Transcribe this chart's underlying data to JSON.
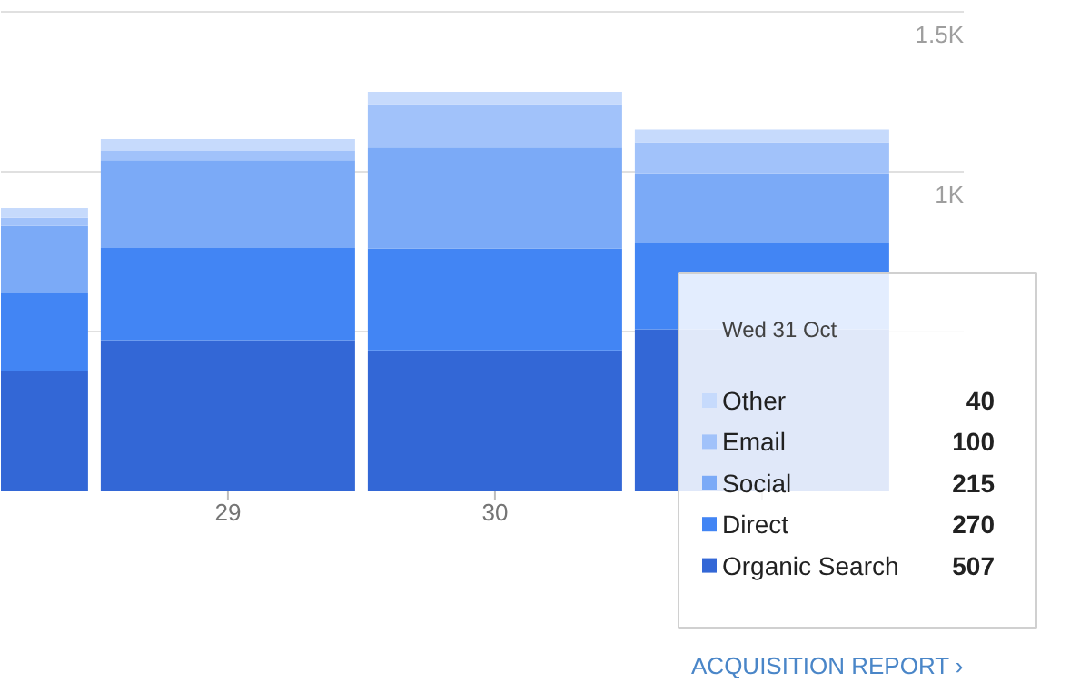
{
  "chart_data": {
    "type": "bar",
    "stacked": true,
    "categories": [
      null,
      "29",
      "30",
      null
    ],
    "series": [
      {
        "name": "Organic Search",
        "color": "#3367d6",
        "values": [
          375,
          473,
          441,
          507
        ]
      },
      {
        "name": "Direct",
        "color": "#4285f4",
        "values": [
          244,
          288,
          319,
          270
        ]
      },
      {
        "name": "Social",
        "color": "#7baaf7",
        "values": [
          211,
          275,
          316,
          215
        ]
      },
      {
        "name": "Email",
        "color": "#a1c2fa",
        "values": [
          26,
          29,
          133,
          100
        ]
      },
      {
        "name": "Other",
        "color": "#c6dafc",
        "values": [
          30,
          37,
          41,
          40
        ]
      }
    ],
    "ylim": [
      0,
      1534
    ],
    "yticks": [
      {
        "value": 500,
        "label": null
      },
      {
        "value": 1000,
        "label": "1K"
      },
      {
        "value": 1500,
        "label": "1.5K"
      }
    ],
    "grid": "y",
    "legend": "bottom right",
    "annotations": [
      "Wed 31 Oct",
      "40",
      "100",
      "215",
      "270",
      "507",
      "ACQUISITION REPORT ›"
    ]
  }
}
